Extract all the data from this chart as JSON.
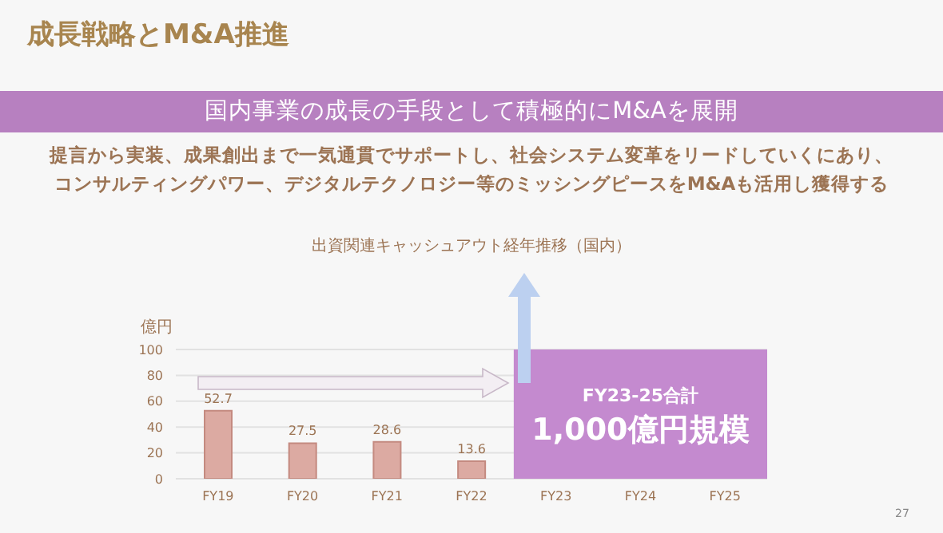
{
  "chart_data": {
    "type": "bar",
    "title": "成長戦略とM&A推進",
    "subtitle": "国内事業の成長の手段として積極的にM&Aを展開",
    "annotations": [
      "提言から実装、成果創出まで一気通貫でサポートし、社会システム変革をリードしていくにあり、",
      "コンサルティングパワー、デジタルテクノロジー等のミッシングピースをM&Aも活用し獲得する",
      "出資関連キャッシュアウト経年推移（国内）",
      "27"
    ],
    "ylabel": "億円",
    "categories": [
      "FY19",
      "FY20",
      "FY21",
      "FY22",
      "FY23",
      "FY24",
      "FY25"
    ],
    "values": [
      52.7,
      27.5,
      28.6,
      13.6,
      null,
      null,
      null
    ],
    "color": "#dcaaa2",
    "ylim": [
      0,
      100
    ],
    "yticks": [
      0,
      20,
      40,
      60,
      80,
      100
    ],
    "grid": "y",
    "data_labels": true,
    "bands": [
      {
        "axis": "x",
        "from": "FY23",
        "to": "FY25",
        "label": "FY23-25合計\n1,000億円規模",
        "color": "#c48acf"
      }
    ]
  }
}
